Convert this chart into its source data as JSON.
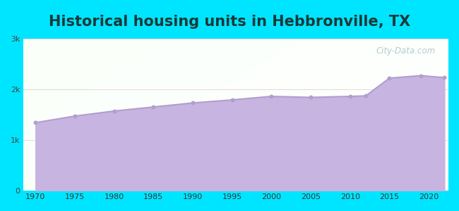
{
  "title": "Historical housing units in Hebbronville, TX",
  "title_fontsize": 15,
  "title_color": "#1a3a3a",
  "background_color": "#00e5ff",
  "fill_color": "#c8b4e0",
  "fill_alpha": 1.0,
  "line_color": "#b09ece",
  "marker_color": "#b09ece",
  "watermark_text": "City-Data.com",
  "years": [
    1970,
    1975,
    1980,
    1985,
    1990,
    1995,
    2000,
    2005,
    2010,
    2012,
    2015,
    2019,
    2022
  ],
  "values": [
    1340,
    1470,
    1570,
    1650,
    1730,
    1790,
    1860,
    1840,
    1860,
    1870,
    2220,
    2270,
    2230
  ],
  "ylim": [
    0,
    3000
  ],
  "yticks": [
    0,
    1000,
    2000,
    3000
  ],
  "ytick_labels": [
    "0",
    "1k",
    "2k",
    "3k"
  ],
  "xticks": [
    1970,
    1975,
    1980,
    1985,
    1990,
    1995,
    2000,
    2005,
    2010,
    2015,
    2020
  ],
  "xlim": [
    1968.5,
    2022.5
  ]
}
